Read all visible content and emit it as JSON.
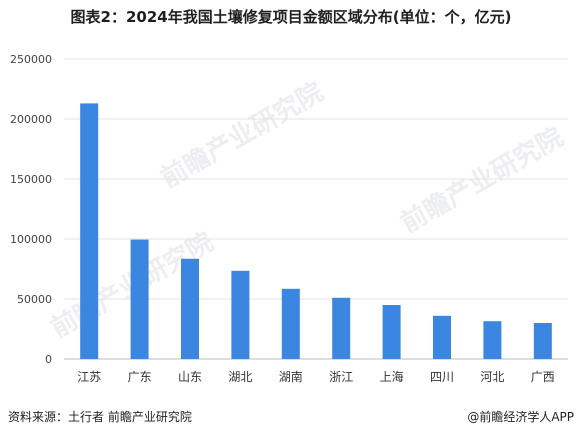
{
  "title": "图表2：2024年我国土壤修复项目金额区域分布(单位：个，亿元)",
  "footer": {
    "source": "资料来源：土行者 前瞻产业研究院",
    "credit": "@前瞻经济学人APP"
  },
  "watermark": "前瞻产业研究院",
  "colors": {
    "bar": "#3b86e0",
    "grid": "#e3e3e3"
  },
  "chart_data": {
    "type": "bar",
    "categories": [
      "江苏",
      "广东",
      "山东",
      "湖北",
      "湖南",
      "浙江",
      "上海",
      "四川",
      "河北",
      "广西"
    ],
    "values": [
      213000,
      99500,
      83500,
      73500,
      58500,
      51000,
      45000,
      36000,
      31500,
      30000
    ],
    "ylim": [
      0,
      250000
    ],
    "yticks": [
      "0",
      "50000",
      "100000",
      "150000",
      "200000",
      "250000"
    ],
    "grid": true,
    "xlabel": "",
    "ylabel": ""
  }
}
